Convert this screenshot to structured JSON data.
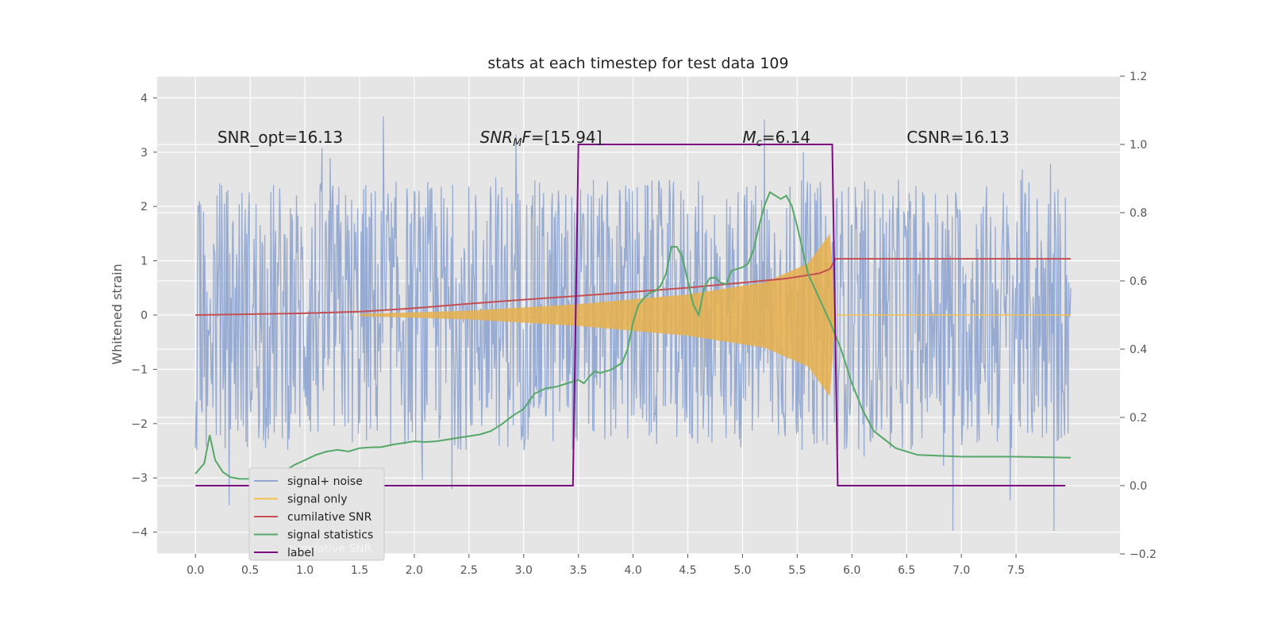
{
  "chart_data": {
    "type": "line",
    "title": "stats at each timestep for test data 109",
    "xlabel": "",
    "ylabel": "Whitened strain",
    "xlim": [
      -0.35,
      8.45
    ],
    "ylim": [
      -4.4,
      4.4
    ],
    "ylim_right": [
      -0.2,
      1.2
    ],
    "grid": true,
    "x_ticks": [
      0.0,
      0.5,
      1.0,
      1.5,
      2.0,
      2.5,
      3.0,
      3.5,
      4.0,
      4.5,
      5.0,
      5.5,
      6.0,
      6.5,
      7.0,
      7.5
    ],
    "x_tick_labels": [
      "0.0",
      "0.5",
      "1.0",
      "1.5",
      "2.0",
      "2.5",
      "3.0",
      "3.5",
      "4.0",
      "4.5",
      "5.0",
      "5.5",
      "6.0",
      "6.5",
      "7.0",
      "7.5"
    ],
    "y_ticks": [
      -4,
      -3,
      -2,
      -1,
      0,
      1,
      2,
      3,
      4
    ],
    "y_tick_labels": [
      "−4",
      "−3",
      "−2",
      "−1",
      "0",
      "1",
      "2",
      "3",
      "4"
    ],
    "y2_ticks": [
      -0.2,
      0.0,
      0.2,
      0.4,
      0.6,
      0.8,
      1.0,
      1.2
    ],
    "y2_tick_labels": [
      "−0.2",
      "0.0",
      "0.2",
      "0.4",
      "0.6",
      "0.8",
      "1.0",
      "1.2"
    ],
    "annotations": [
      {
        "text": "SNR_opt=16.13",
        "x": 0.2,
        "y": 3.2
      },
      {
        "text": "SNR_MF=[15.94]",
        "x": 2.6,
        "y": 3.2
      },
      {
        "text": "M_c=6.14",
        "x": 5.0,
        "y": 3.2
      },
      {
        "text": "CSNR=16.13",
        "x": 6.5,
        "y": 3.2
      }
    ],
    "series": [
      {
        "name": "signal+ noise",
        "axis": "left",
        "style": "noise",
        "x_range": [
          0.0,
          8.0
        ],
        "noise_envelope": [
          -2.5,
          2.5
        ],
        "peak_range": [
          -4.0,
          4.0
        ],
        "color": "#92a8d1"
      },
      {
        "name": "signal only",
        "axis": "left",
        "style": "chirp",
        "x_range": [
          1.5,
          5.85
        ],
        "envelope": {
          "x": [
            1.5,
            2.5,
            3.5,
            4.5,
            5.2,
            5.6,
            5.8,
            5.85
          ],
          "amp": [
            0.02,
            0.08,
            0.2,
            0.38,
            0.6,
            0.95,
            1.5,
            0.0
          ]
        },
        "color": "#e8b04a"
      },
      {
        "name": "cumilative SNR",
        "axis": "right",
        "x": [
          0.0,
          1.0,
          1.5,
          2.0,
          2.5,
          3.0,
          3.5,
          4.0,
          4.5,
          5.0,
          5.4,
          5.7,
          5.8,
          5.85,
          8.0
        ],
        "values": [
          0.5,
          0.505,
          0.51,
          0.52,
          0.533,
          0.545,
          0.556,
          0.568,
          0.58,
          0.595,
          0.607,
          0.622,
          0.635,
          0.665,
          0.665
        ],
        "color": "#c44e52"
      },
      {
        "name": "signal statistics",
        "axis": "right",
        "x": [
          0.0,
          0.08,
          0.13,
          0.18,
          0.25,
          0.32,
          0.4,
          0.5,
          0.6,
          0.7,
          0.8,
          0.9,
          1.0,
          1.1,
          1.2,
          1.3,
          1.4,
          1.5,
          1.6,
          1.7,
          1.8,
          1.9,
          2.0,
          2.1,
          2.2,
          2.3,
          2.4,
          2.5,
          2.6,
          2.7,
          2.8,
          2.9,
          3.0,
          3.1,
          3.2,
          3.3,
          3.4,
          3.5,
          3.55,
          3.6,
          3.65,
          3.7,
          3.8,
          3.9,
          3.95,
          4.0,
          4.05,
          4.1,
          4.15,
          4.2,
          4.25,
          4.3,
          4.35,
          4.4,
          4.45,
          4.5,
          4.55,
          4.6,
          4.65,
          4.7,
          4.75,
          4.8,
          4.85,
          4.9,
          5.0,
          5.05,
          5.1,
          5.15,
          5.2,
          5.25,
          5.3,
          5.35,
          5.4,
          5.45,
          5.5,
          5.6,
          5.7,
          5.8,
          5.9,
          6.0,
          6.1,
          6.2,
          6.4,
          6.6,
          7.0,
          7.5,
          8.0
        ],
        "values": [
          0.035,
          0.065,
          0.148,
          0.075,
          0.04,
          0.025,
          0.02,
          0.02,
          0.025,
          0.03,
          0.04,
          0.06,
          0.075,
          0.09,
          0.1,
          0.105,
          0.1,
          0.11,
          0.112,
          0.113,
          0.12,
          0.125,
          0.13,
          0.128,
          0.13,
          0.135,
          0.14,
          0.145,
          0.15,
          0.16,
          0.18,
          0.205,
          0.225,
          0.27,
          0.285,
          0.29,
          0.3,
          0.31,
          0.3,
          0.32,
          0.335,
          0.33,
          0.34,
          0.36,
          0.4,
          0.48,
          0.53,
          0.55,
          0.565,
          0.57,
          0.585,
          0.62,
          0.7,
          0.7,
          0.67,
          0.6,
          0.53,
          0.5,
          0.58,
          0.608,
          0.61,
          0.595,
          0.59,
          0.63,
          0.64,
          0.65,
          0.69,
          0.76,
          0.82,
          0.86,
          0.85,
          0.84,
          0.85,
          0.82,
          0.76,
          0.62,
          0.55,
          0.48,
          0.4,
          0.3,
          0.22,
          0.16,
          0.11,
          0.09,
          0.085,
          0.085,
          0.082
        ],
        "color": "#55a868"
      },
      {
        "name": "label",
        "axis": "right",
        "x": [
          0.0,
          3.45,
          3.5,
          5.82,
          5.87,
          7.95
        ],
        "values": [
          0.0,
          0.0,
          1.0,
          1.0,
          0.0,
          0.0
        ],
        "color": "#7b0a84"
      }
    ],
    "legend": {
      "placement": "lower-left",
      "entries": [
        {
          "label": "signal+ noise",
          "color": "#92a8d1"
        },
        {
          "label": "signal only",
          "color": "#f2c14e"
        },
        {
          "label": "cumilative SNR",
          "color": "#c44e52"
        },
        {
          "label": "signal statistics",
          "color": "#55a868"
        },
        {
          "label": "label",
          "color": "#7b0a84"
        }
      ],
      "hidden_entry_text": "cumilative SNR"
    },
    "colors": {
      "plot_bg": "#e5e5e5",
      "grid": "#ffffff",
      "text": "#222222",
      "tick": "#555555"
    }
  }
}
